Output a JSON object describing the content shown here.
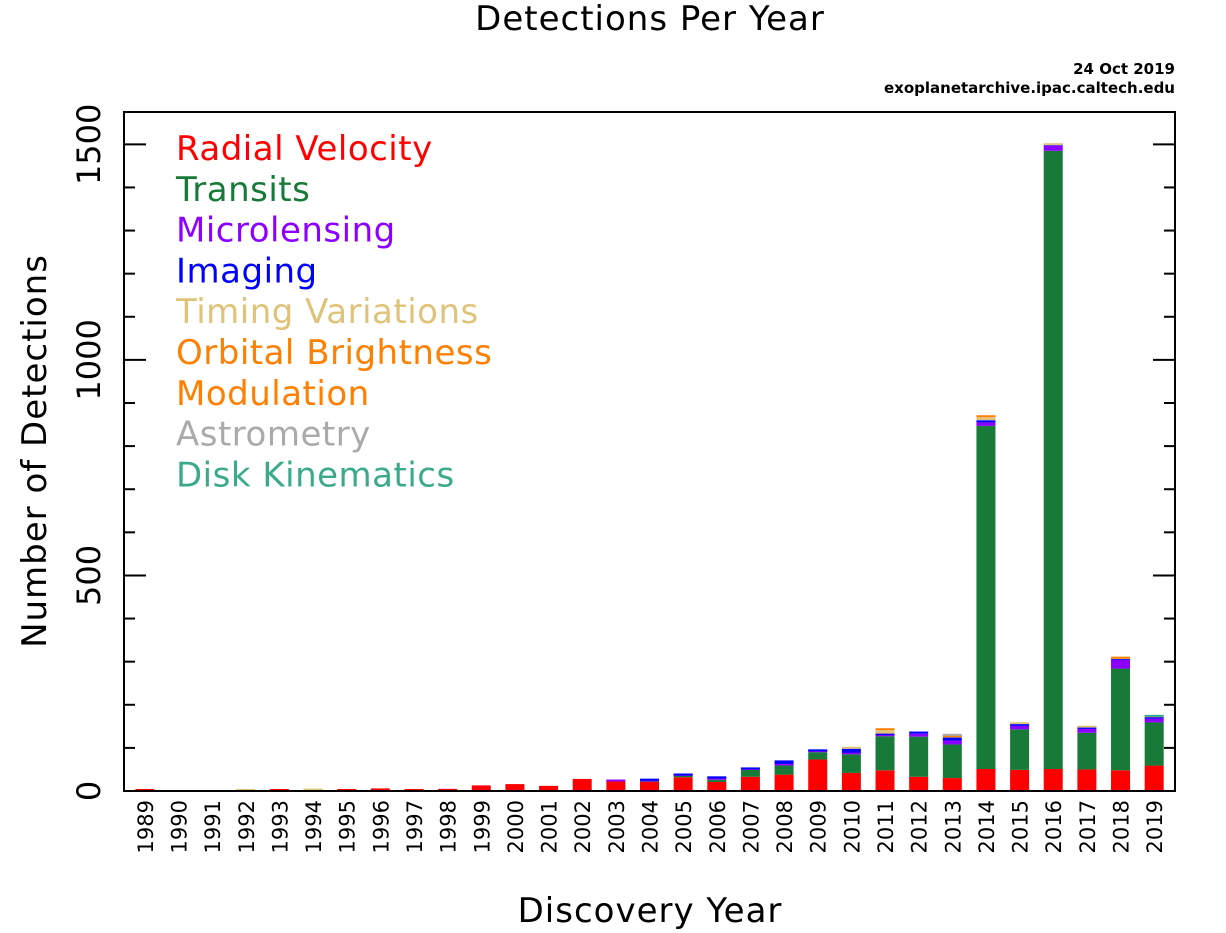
{
  "chart_data": {
    "type": "bar",
    "stacked": true,
    "title": "Detections Per Year",
    "credit": {
      "date": "24 Oct 2019",
      "source": "exoplanetarchive.ipac.caltech.edu"
    },
    "xlabel": "Discovery Year",
    "ylabel": "Number of Detections",
    "ylim": [
      0,
      1575
    ],
    "yticks": [
      0,
      500,
      1000,
      1500
    ],
    "yticks_minor_step": 100,
    "legend_position": "top-left",
    "categories": [
      "1989",
      "1990",
      "1991",
      "1992",
      "1993",
      "1994",
      "1995",
      "1996",
      "1997",
      "1998",
      "1999",
      "2000",
      "2001",
      "2002",
      "2003",
      "2004",
      "2005",
      "2006",
      "2007",
      "2008",
      "2009",
      "2010",
      "2011",
      "2012",
      "2013",
      "2014",
      "2015",
      "2016",
      "2017",
      "2018",
      "2019"
    ],
    "series": [
      {
        "name": "Radial Velocity",
        "color": "#ff0000",
        "values": [
          1,
          0,
          0,
          0,
          1,
          1,
          1,
          6,
          1,
          5,
          13,
          16,
          12,
          28,
          22,
          21,
          32,
          21,
          33,
          38,
          73,
          42,
          48,
          33,
          30,
          51,
          49,
          51,
          50,
          48,
          59
        ]
      },
      {
        "name": "Transits",
        "color": "#177a38",
        "values": [
          0,
          0,
          0,
          0,
          0,
          0,
          0,
          0,
          0,
          0,
          0,
          0,
          0,
          0,
          0,
          1,
          3,
          5,
          16,
          21,
          17,
          43,
          79,
          93,
          78,
          796,
          94,
          1434,
          85,
          236,
          100
        ]
      },
      {
        "name": "Microlensing",
        "color": "#8b00ff",
        "values": [
          0,
          0,
          0,
          0,
          0,
          0,
          0,
          0,
          0,
          0,
          0,
          0,
          0,
          0,
          1,
          2,
          1,
          3,
          1,
          4,
          2,
          4,
          3,
          7,
          9,
          8,
          8,
          12,
          9,
          20,
          9
        ]
      },
      {
        "name": "Imaging",
        "color": "#0000ff",
        "values": [
          0,
          0,
          0,
          0,
          0,
          0,
          0,
          0,
          0,
          0,
          0,
          0,
          0,
          0,
          0,
          4,
          2,
          5,
          1,
          8,
          2,
          9,
          3,
          5,
          7,
          5,
          4,
          1,
          3,
          2,
          3
        ]
      },
      {
        "name": "Timing Variations",
        "color": "#e0c37a",
        "values": [
          0,
          0,
          0,
          1,
          0,
          1,
          0,
          0,
          0,
          0,
          0,
          0,
          0,
          0,
          0,
          0,
          0,
          0,
          0,
          0,
          0,
          1,
          8,
          0,
          1,
          7,
          1,
          1,
          1,
          1,
          1
        ]
      },
      {
        "name": "Orbital Brightness Modulation",
        "color": "#ff8000",
        "values": [
          0,
          0,
          0,
          0,
          0,
          0,
          0,
          0,
          0,
          0,
          0,
          0,
          0,
          0,
          0,
          0,
          0,
          0,
          0,
          0,
          0,
          0,
          2,
          0,
          3,
          3,
          0,
          0,
          0,
          1,
          0
        ]
      },
      {
        "name": "Astrometry",
        "color": "#aaaaaa",
        "values": [
          0,
          0,
          0,
          0,
          0,
          0,
          0,
          0,
          0,
          0,
          0,
          0,
          0,
          0,
          0,
          0,
          0,
          0,
          0,
          0,
          0,
          0,
          0,
          0,
          1,
          0,
          0,
          0,
          0,
          0,
          0
        ]
      },
      {
        "name": "Disk Kinematics",
        "color": "#3aaa8a",
        "values": [
          0,
          0,
          0,
          0,
          0,
          0,
          0,
          0,
          0,
          0,
          0,
          0,
          0,
          0,
          0,
          0,
          0,
          0,
          0,
          0,
          0,
          0,
          0,
          0,
          0,
          0,
          0,
          0,
          0,
          0,
          1
        ]
      }
    ],
    "legend": [
      {
        "label": "Radial Velocity",
        "color": "#ff0000"
      },
      {
        "label": "Transits",
        "color": "#177a38"
      },
      {
        "label": "Microlensing",
        "color": "#8b00ff"
      },
      {
        "label": "Imaging",
        "color": "#0000ff"
      },
      {
        "label": "Timing Variations",
        "color": "#e0c37a"
      },
      {
        "label": "Orbital Brightness",
        "color": "#ff8000"
      },
      {
        "label": "Modulation",
        "color": "#ff8000"
      },
      {
        "label": "Astrometry",
        "color": "#aaaaaa"
      },
      {
        "label": "Disk Kinematics",
        "color": "#3aaa8a"
      }
    ]
  }
}
